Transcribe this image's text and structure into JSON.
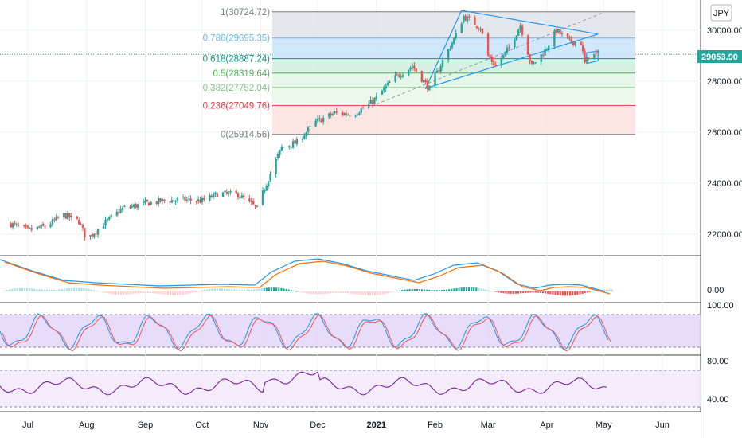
{
  "chart_data": {
    "type": "candlestick",
    "currency": "JPY",
    "last_price": "29053.90",
    "price_axis": {
      "ylim": [
        20700,
        31600
      ],
      "ticks": [
        "30000.00",
        "28000.00",
        "26000.00",
        "24000.00",
        "22000.00"
      ],
      "tick_values": [
        30000,
        28000,
        26000,
        24000,
        22000
      ]
    },
    "time_axis": {
      "ticks": [
        "Jul",
        "Aug",
        "Sep",
        "Oct",
        "Nov",
        "Dec",
        "2021",
        "Feb",
        "Mar",
        "Apr",
        "May",
        "Jun"
      ]
    },
    "fibonacci": [
      {
        "label": "1(30724.72)",
        "value": 30724.72,
        "color": "#787b86"
      },
      {
        "label": "0.786(29695.35)",
        "value": 29695.35,
        "color": "#64b5f6"
      },
      {
        "label": "0.618(28887.24)",
        "value": 28887.24,
        "color": "#089981"
      },
      {
        "label": "0.5(28319.64)",
        "value": 28319.64,
        "color": "#4caf50"
      },
      {
        "label": "0.382(27752.04)",
        "value": 27752.04,
        "color": "#81c784"
      },
      {
        "label": "0.236(27049.76)",
        "value": 27049.76,
        "color": "#f23645"
      },
      {
        "label": "0(25914.56)",
        "value": 25914.56,
        "color": "#787b86"
      }
    ],
    "close_series": [
      {
        "x": "2020-06-22",
        "y": 22400
      },
      {
        "x": "2020-07-01",
        "y": 22150
      },
      {
        "x": "2020-07-10",
        "y": 22300
      },
      {
        "x": "2020-07-20",
        "y": 22750
      },
      {
        "x": "2020-07-28",
        "y": 22500
      },
      {
        "x": "2020-08-01",
        "y": 21800
      },
      {
        "x": "2020-08-10",
        "y": 22400
      },
      {
        "x": "2020-08-20",
        "y": 23000
      },
      {
        "x": "2020-09-01",
        "y": 23200
      },
      {
        "x": "2020-09-10",
        "y": 23300
      },
      {
        "x": "2020-09-20",
        "y": 23350
      },
      {
        "x": "2020-10-01",
        "y": 23300
      },
      {
        "x": "2020-10-10",
        "y": 23600
      },
      {
        "x": "2020-10-20",
        "y": 23550
      },
      {
        "x": "2020-10-30",
        "y": 23000
      },
      {
        "x": "2020-11-05",
        "y": 24200
      },
      {
        "x": "2020-11-12",
        "y": 25400
      },
      {
        "x": "2020-11-20",
        "y": 25600
      },
      {
        "x": "2020-11-30",
        "y": 26400
      },
      {
        "x": "2020-12-10",
        "y": 26750
      },
      {
        "x": "2020-12-20",
        "y": 26700
      },
      {
        "x": "2020-12-30",
        "y": 27200
      },
      {
        "x": "2021-01-10",
        "y": 28100
      },
      {
        "x": "2021-01-20",
        "y": 28600
      },
      {
        "x": "2021-01-29",
        "y": 27700
      },
      {
        "x": "2021-02-05",
        "y": 28800
      },
      {
        "x": "2021-02-12",
        "y": 29800
      },
      {
        "x": "2021-02-16",
        "y": 30550
      },
      {
        "x": "2021-02-25",
        "y": 30100
      },
      {
        "x": "2021-03-01",
        "y": 29000
      },
      {
        "x": "2021-03-05",
        "y": 28600
      },
      {
        "x": "2021-03-12",
        "y": 29300
      },
      {
        "x": "2021-03-18",
        "y": 30200
      },
      {
        "x": "2021-03-24",
        "y": 28600
      },
      {
        "x": "2021-03-31",
        "y": 29200
      },
      {
        "x": "2021-04-06",
        "y": 30000
      },
      {
        "x": "2021-04-12",
        "y": 29600
      },
      {
        "x": "2021-04-19",
        "y": 29500
      },
      {
        "x": "2021-04-21",
        "y": 28700
      },
      {
        "x": "2021-04-23",
        "y": 29000
      },
      {
        "x": "2021-04-28",
        "y": 29054
      }
    ],
    "macd": {
      "zero_label": "0.00"
    },
    "stoch": {
      "tick_labels": [
        "100.00"
      ]
    },
    "rsi": {
      "tick_labels": [
        "80.00",
        "40.00"
      ]
    }
  }
}
